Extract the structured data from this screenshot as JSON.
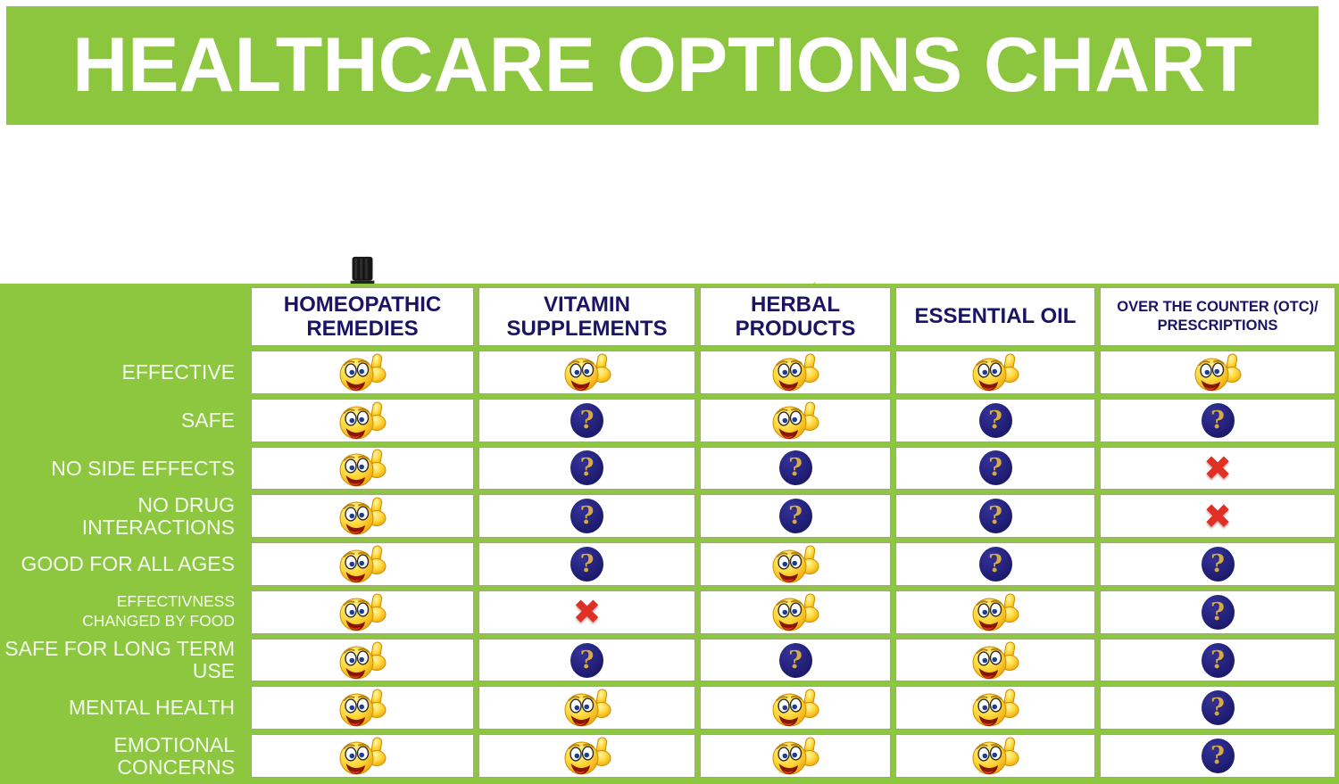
{
  "title": "HEALTHCARE OPTIONS CHART",
  "colors": {
    "banner_green": "#8cc63e",
    "table_green": "#8dc63f",
    "header_text_navy": "#1b1464",
    "row_label_text": "#f4fbee",
    "question_circle": "#1d1a6e",
    "question_glyph_gold": "#d5a848",
    "cross_red": "#e03025",
    "smiley_yellow": "#ffd93b"
  },
  "columns": [
    {
      "label": "HOMEOPATHIC REMEDIES",
      "lines": [
        "HOMEOPATHIC",
        "REMEDIES"
      ],
      "image": "homeopathic-remedy-bottle-photo"
    },
    {
      "label": "VITAMIN SUPPLEMENTS",
      "lines": [
        "VITAMIN",
        "SUPPLEMENTS"
      ],
      "image": "vitamin-capsules-photo"
    },
    {
      "label": "HERBAL PRODUCTS",
      "lines": [
        "HERBAL",
        "PRODUCTS"
      ],
      "image": "herbal-leaves-and-spoon-photo"
    },
    {
      "label": "ESSENTIAL OIL",
      "lines": [
        "ESSENTIAL OIL"
      ],
      "image": "essential-oil-bottle-lavender-photo"
    },
    {
      "label": "OVER THE COUNTER (OTC)/ PRESCRIPTIONS",
      "lines": [
        "OVER THE COUNTER (OTC)/",
        "PRESCRIPTIONS"
      ],
      "image": "otc-pills-bowl-apple-photo"
    }
  ],
  "rows": [
    {
      "label": "EFFECTIVE",
      "lines": [
        "EFFECTIVE"
      ],
      "small": false,
      "cells": [
        "yes",
        "yes",
        "yes",
        "yes",
        "yes"
      ]
    },
    {
      "label": "SAFE",
      "lines": [
        "SAFE"
      ],
      "small": false,
      "cells": [
        "yes",
        "question",
        "yes",
        "question",
        "question"
      ]
    },
    {
      "label": "NO SIDE EFFECTS",
      "lines": [
        "NO SIDE EFFECTS"
      ],
      "small": false,
      "cells": [
        "yes",
        "question",
        "question",
        "question",
        "no"
      ]
    },
    {
      "label": "NO DRUG INTERACTIONS",
      "lines": [
        "NO DRUG INTERACTIONS"
      ],
      "small": false,
      "cells": [
        "yes",
        "question",
        "question",
        "question",
        "no"
      ]
    },
    {
      "label": "GOOD FOR ALL AGES",
      "lines": [
        "GOOD FOR ALL AGES"
      ],
      "small": false,
      "cells": [
        "yes",
        "question",
        "yes",
        "question",
        "question"
      ]
    },
    {
      "label": "EFFECTIVNESS CHANGED BY FOOD",
      "lines": [
        "EFFECTIVNESS",
        "CHANGED BY FOOD"
      ],
      "small": true,
      "cells": [
        "yes",
        "no",
        "yes",
        "yes",
        "question"
      ]
    },
    {
      "label": "SAFE FOR LONG TERM USE",
      "lines": [
        "SAFE FOR LONG TERM USE"
      ],
      "small": false,
      "cells": [
        "yes",
        "question",
        "question",
        "yes",
        "question"
      ]
    },
    {
      "label": "MENTAL HEALTH",
      "lines": [
        "MENTAL HEALTH"
      ],
      "small": false,
      "cells": [
        "yes",
        "yes",
        "yes",
        "yes",
        "question"
      ]
    },
    {
      "label": "EMOTIONAL CONCERNS",
      "lines": [
        "EMOTIONAL CONCERNS"
      ],
      "small": false,
      "cells": [
        "yes",
        "yes",
        "yes",
        "yes",
        "question"
      ]
    }
  ],
  "icons": {
    "yes": {
      "name": "thumbs-up-smiley-icon"
    },
    "question": {
      "name": "question-mark-icon",
      "glyph": "?"
    },
    "no": {
      "name": "red-cross-icon",
      "glyph": "✖"
    }
  },
  "chart_data": {
    "type": "table",
    "title": "HEALTHCARE OPTIONS CHART",
    "columns": [
      "HOMEOPATHIC REMEDIES",
      "VITAMIN SUPPLEMENTS",
      "HERBAL PRODUCTS",
      "ESSENTIAL OIL",
      "OVER THE COUNTER (OTC)/ PRESCRIPTIONS"
    ],
    "rows": [
      "EFFECTIVE",
      "SAFE",
      "NO SIDE EFFECTS",
      "NO DRUG INTERACTIONS",
      "GOOD FOR ALL AGES",
      "EFFECTIVNESS CHANGED BY FOOD",
      "SAFE FOR LONG TERM USE",
      "MENTAL HEALTH",
      "EMOTIONAL CONCERNS"
    ],
    "cell_values": [
      [
        "yes",
        "yes",
        "yes",
        "yes",
        "yes"
      ],
      [
        "yes",
        "question",
        "yes",
        "question",
        "question"
      ],
      [
        "yes",
        "question",
        "question",
        "question",
        "no"
      ],
      [
        "yes",
        "question",
        "question",
        "question",
        "no"
      ],
      [
        "yes",
        "question",
        "yes",
        "question",
        "question"
      ],
      [
        "yes",
        "no",
        "yes",
        "yes",
        "question"
      ],
      [
        "yes",
        "question",
        "question",
        "yes",
        "question"
      ],
      [
        "yes",
        "yes",
        "yes",
        "yes",
        "question"
      ],
      [
        "yes",
        "yes",
        "yes",
        "yes",
        "question"
      ]
    ],
    "value_legend": {
      "yes": "thumbs-up smiley (positive)",
      "question": "dark blue circle with gold question mark (uncertain)",
      "no": "red cross (negative)"
    },
    "legend_position": "none",
    "grid": true
  }
}
